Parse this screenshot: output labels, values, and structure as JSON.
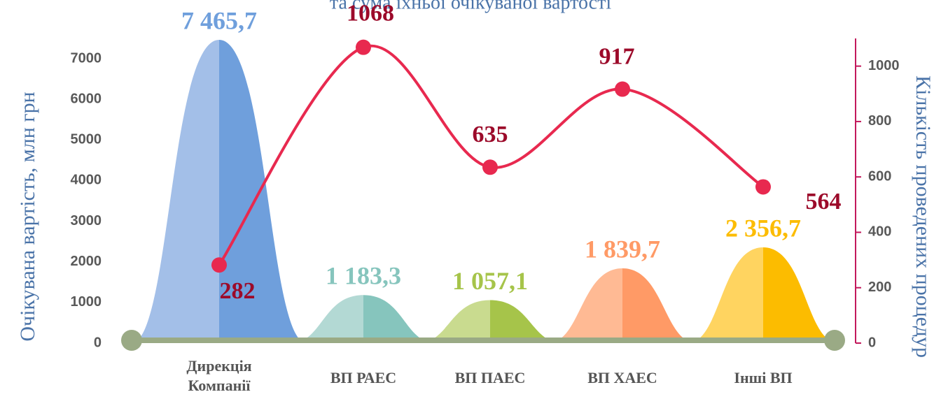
{
  "chart_data": {
    "type": "bar",
    "title": "та сума їхньої очікуваної вартості",
    "y_label": "Очікувана вартість, млн грн",
    "y2_label": "Кількість проведених процедур",
    "categories": [
      "Дирекція Компанії",
      "ВП РАЕС",
      "ВП ПАЕС",
      "ВП ХАЕС",
      "Інші ВП"
    ],
    "ylim": [
      0,
      7500
    ],
    "yticks": [
      0,
      1000,
      2000,
      3000,
      4000,
      5000,
      6000,
      7000
    ],
    "y2lim": [
      0,
      1100
    ],
    "y2ticks": [
      0,
      200,
      400,
      600,
      800,
      1000
    ],
    "series": [
      {
        "type": "bar",
        "values": [
          7465.7,
          1183.3,
          1057.1,
          1839.7,
          2356.7
        ],
        "value_labels": [
          "7 465,7",
          "1 183,3",
          "1 057,1",
          "1 839,7",
          "2 356,7"
        ],
        "colors": [
          "#6f9fdc",
          "#86c5bd",
          "#a6c44a",
          "#ff9a66",
          "#fcbc00"
        ],
        "light_colors": [
          "#a3bfe8",
          "#b3d9d4",
          "#c9db8f",
          "#ffba94",
          "#ffd460"
        ]
      },
      {
        "type": "line",
        "axis": "y2",
        "color": "#e8294f",
        "label_color": "#9c0a2a",
        "values": [
          282,
          1068,
          635,
          917,
          564
        ]
      }
    ]
  }
}
